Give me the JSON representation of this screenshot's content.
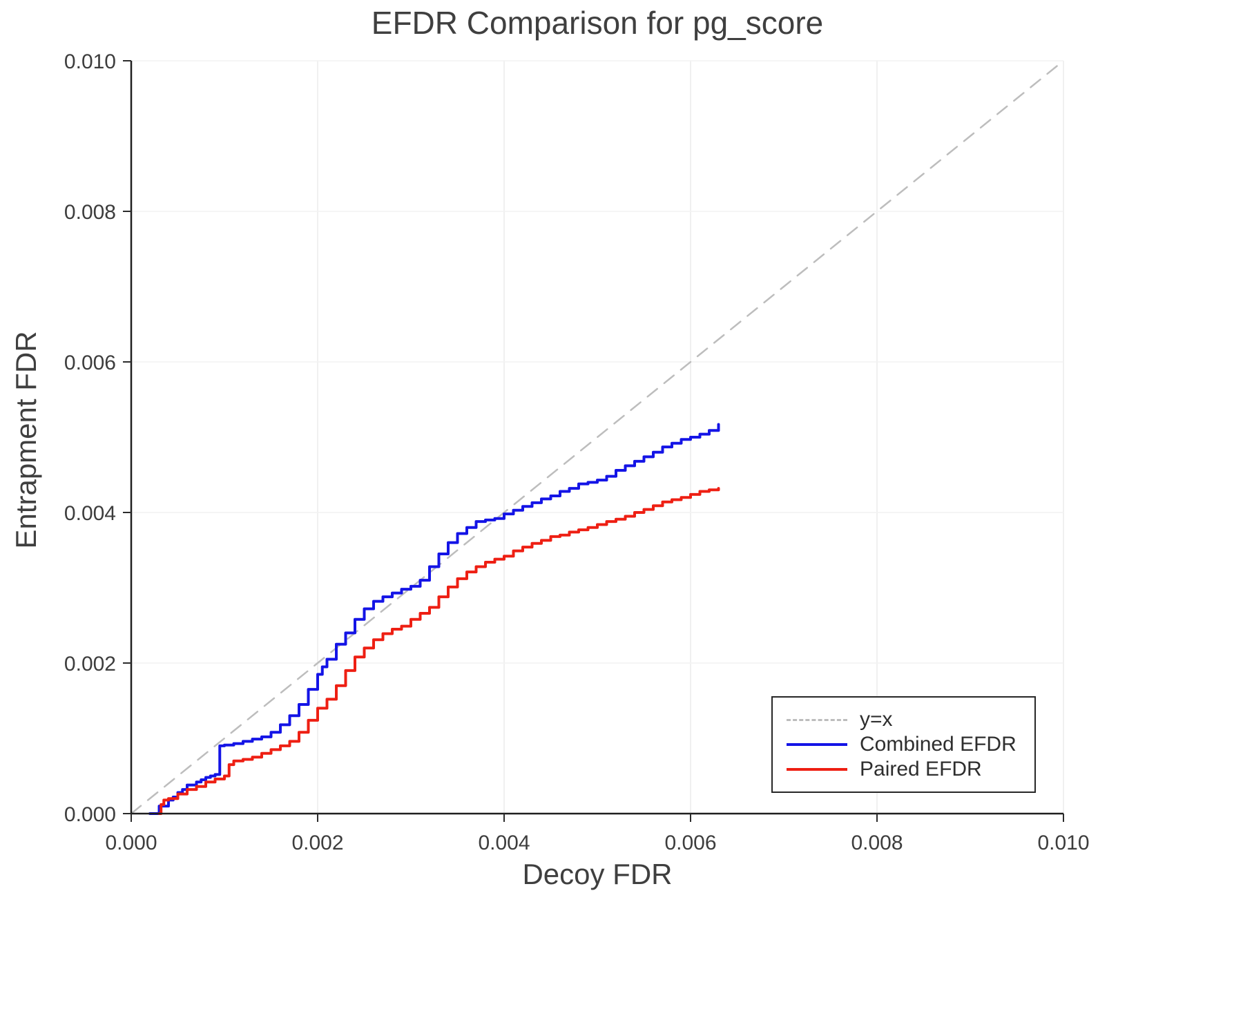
{
  "chart_data": {
    "type": "line",
    "title": "EFDR Comparison for pg_score",
    "xlabel": "Decoy FDR",
    "ylabel": "Entrapment FDR",
    "xlim": [
      0.0,
      0.01
    ],
    "ylim": [
      0.0,
      0.01
    ],
    "xticks": [
      0.0,
      0.002,
      0.004,
      0.006,
      0.008,
      0.01
    ],
    "yticks": [
      0.0,
      0.002,
      0.004,
      0.006,
      0.008,
      0.01
    ],
    "grid": true,
    "legend_position": "lower right",
    "series": [
      {
        "name": "y=x",
        "style": "dashed",
        "color": "#bdbdbd",
        "step": false,
        "x": [
          0.0,
          0.01
        ],
        "y": [
          0.0,
          0.01
        ]
      },
      {
        "name": "Combined EFDR",
        "style": "solid",
        "color": "#1414e6",
        "step": true,
        "x": [
          0.0002,
          0.0003,
          0.0004,
          0.00045,
          0.0005,
          0.00055,
          0.0006,
          0.0007,
          0.00075,
          0.0008,
          0.00085,
          0.0009,
          0.00095,
          0.00095,
          0.001,
          0.0011,
          0.0012,
          0.0013,
          0.0014,
          0.0015,
          0.0016,
          0.0017,
          0.0018,
          0.0019,
          0.002,
          0.00205,
          0.0021,
          0.0022,
          0.0023,
          0.0024,
          0.0025,
          0.0026,
          0.0027,
          0.0028,
          0.0029,
          0.003,
          0.0031,
          0.0032,
          0.0033,
          0.0034,
          0.0035,
          0.0036,
          0.0037,
          0.0038,
          0.0039,
          0.004,
          0.0041,
          0.0042,
          0.0043,
          0.0044,
          0.0045,
          0.0046,
          0.0047,
          0.0048,
          0.0049,
          0.005,
          0.0051,
          0.0052,
          0.0053,
          0.0054,
          0.0055,
          0.0056,
          0.0057,
          0.0058,
          0.0059,
          0.006,
          0.0061,
          0.0062,
          0.0063
        ],
        "y": [
          0.0,
          0.0001,
          0.00018,
          0.00022,
          0.00028,
          0.00032,
          0.00038,
          0.00042,
          0.00045,
          0.00048,
          0.0005,
          0.00052,
          0.00058,
          0.0009,
          0.00091,
          0.00093,
          0.00096,
          0.00099,
          0.00102,
          0.00108,
          0.00118,
          0.0013,
          0.00145,
          0.00165,
          0.00185,
          0.00195,
          0.00205,
          0.00225,
          0.0024,
          0.00258,
          0.00272,
          0.00282,
          0.00288,
          0.00293,
          0.00298,
          0.00302,
          0.0031,
          0.00328,
          0.00345,
          0.0036,
          0.00372,
          0.0038,
          0.00388,
          0.0039,
          0.00392,
          0.00398,
          0.00403,
          0.00408,
          0.00413,
          0.00418,
          0.00422,
          0.00428,
          0.00432,
          0.00438,
          0.0044,
          0.00443,
          0.00448,
          0.00456,
          0.00462,
          0.00468,
          0.00474,
          0.0048,
          0.00487,
          0.00492,
          0.00497,
          0.005,
          0.00504,
          0.00509,
          0.00517
        ]
      },
      {
        "name": "Paired EFDR",
        "style": "solid",
        "color": "#ee1f13",
        "step": true,
        "x": [
          0.0003,
          0.00032,
          0.00035,
          0.0004,
          0.0005,
          0.0006,
          0.0007,
          0.0008,
          0.0009,
          0.001,
          0.00105,
          0.0011,
          0.0012,
          0.0013,
          0.0014,
          0.0015,
          0.0016,
          0.0017,
          0.0018,
          0.0019,
          0.002,
          0.0021,
          0.0022,
          0.0023,
          0.0024,
          0.0025,
          0.0026,
          0.0027,
          0.0028,
          0.0029,
          0.003,
          0.0031,
          0.0032,
          0.0033,
          0.0034,
          0.0035,
          0.0036,
          0.0037,
          0.0038,
          0.0039,
          0.004,
          0.0041,
          0.0042,
          0.0043,
          0.0044,
          0.0045,
          0.0046,
          0.0047,
          0.0048,
          0.0049,
          0.005,
          0.0051,
          0.0052,
          0.0053,
          0.0054,
          0.0055,
          0.0056,
          0.0057,
          0.0058,
          0.0059,
          0.006,
          0.0061,
          0.0062,
          0.0063
        ],
        "y": [
          0.0,
          0.00012,
          0.00018,
          0.0002,
          0.00026,
          0.00032,
          0.00036,
          0.00042,
          0.00046,
          0.0005,
          0.00065,
          0.0007,
          0.00072,
          0.00075,
          0.0008,
          0.00085,
          0.0009,
          0.00096,
          0.00108,
          0.00124,
          0.0014,
          0.00152,
          0.0017,
          0.0019,
          0.00208,
          0.0022,
          0.00231,
          0.00239,
          0.00245,
          0.00249,
          0.00258,
          0.00266,
          0.00274,
          0.00288,
          0.00301,
          0.00312,
          0.00321,
          0.00328,
          0.00334,
          0.00338,
          0.00342,
          0.00349,
          0.00354,
          0.00359,
          0.00363,
          0.00368,
          0.0037,
          0.00374,
          0.00377,
          0.0038,
          0.00384,
          0.00388,
          0.00391,
          0.00395,
          0.004,
          0.00404,
          0.00409,
          0.00414,
          0.00417,
          0.0042,
          0.00424,
          0.00428,
          0.0043,
          0.00432
        ]
      }
    ]
  }
}
